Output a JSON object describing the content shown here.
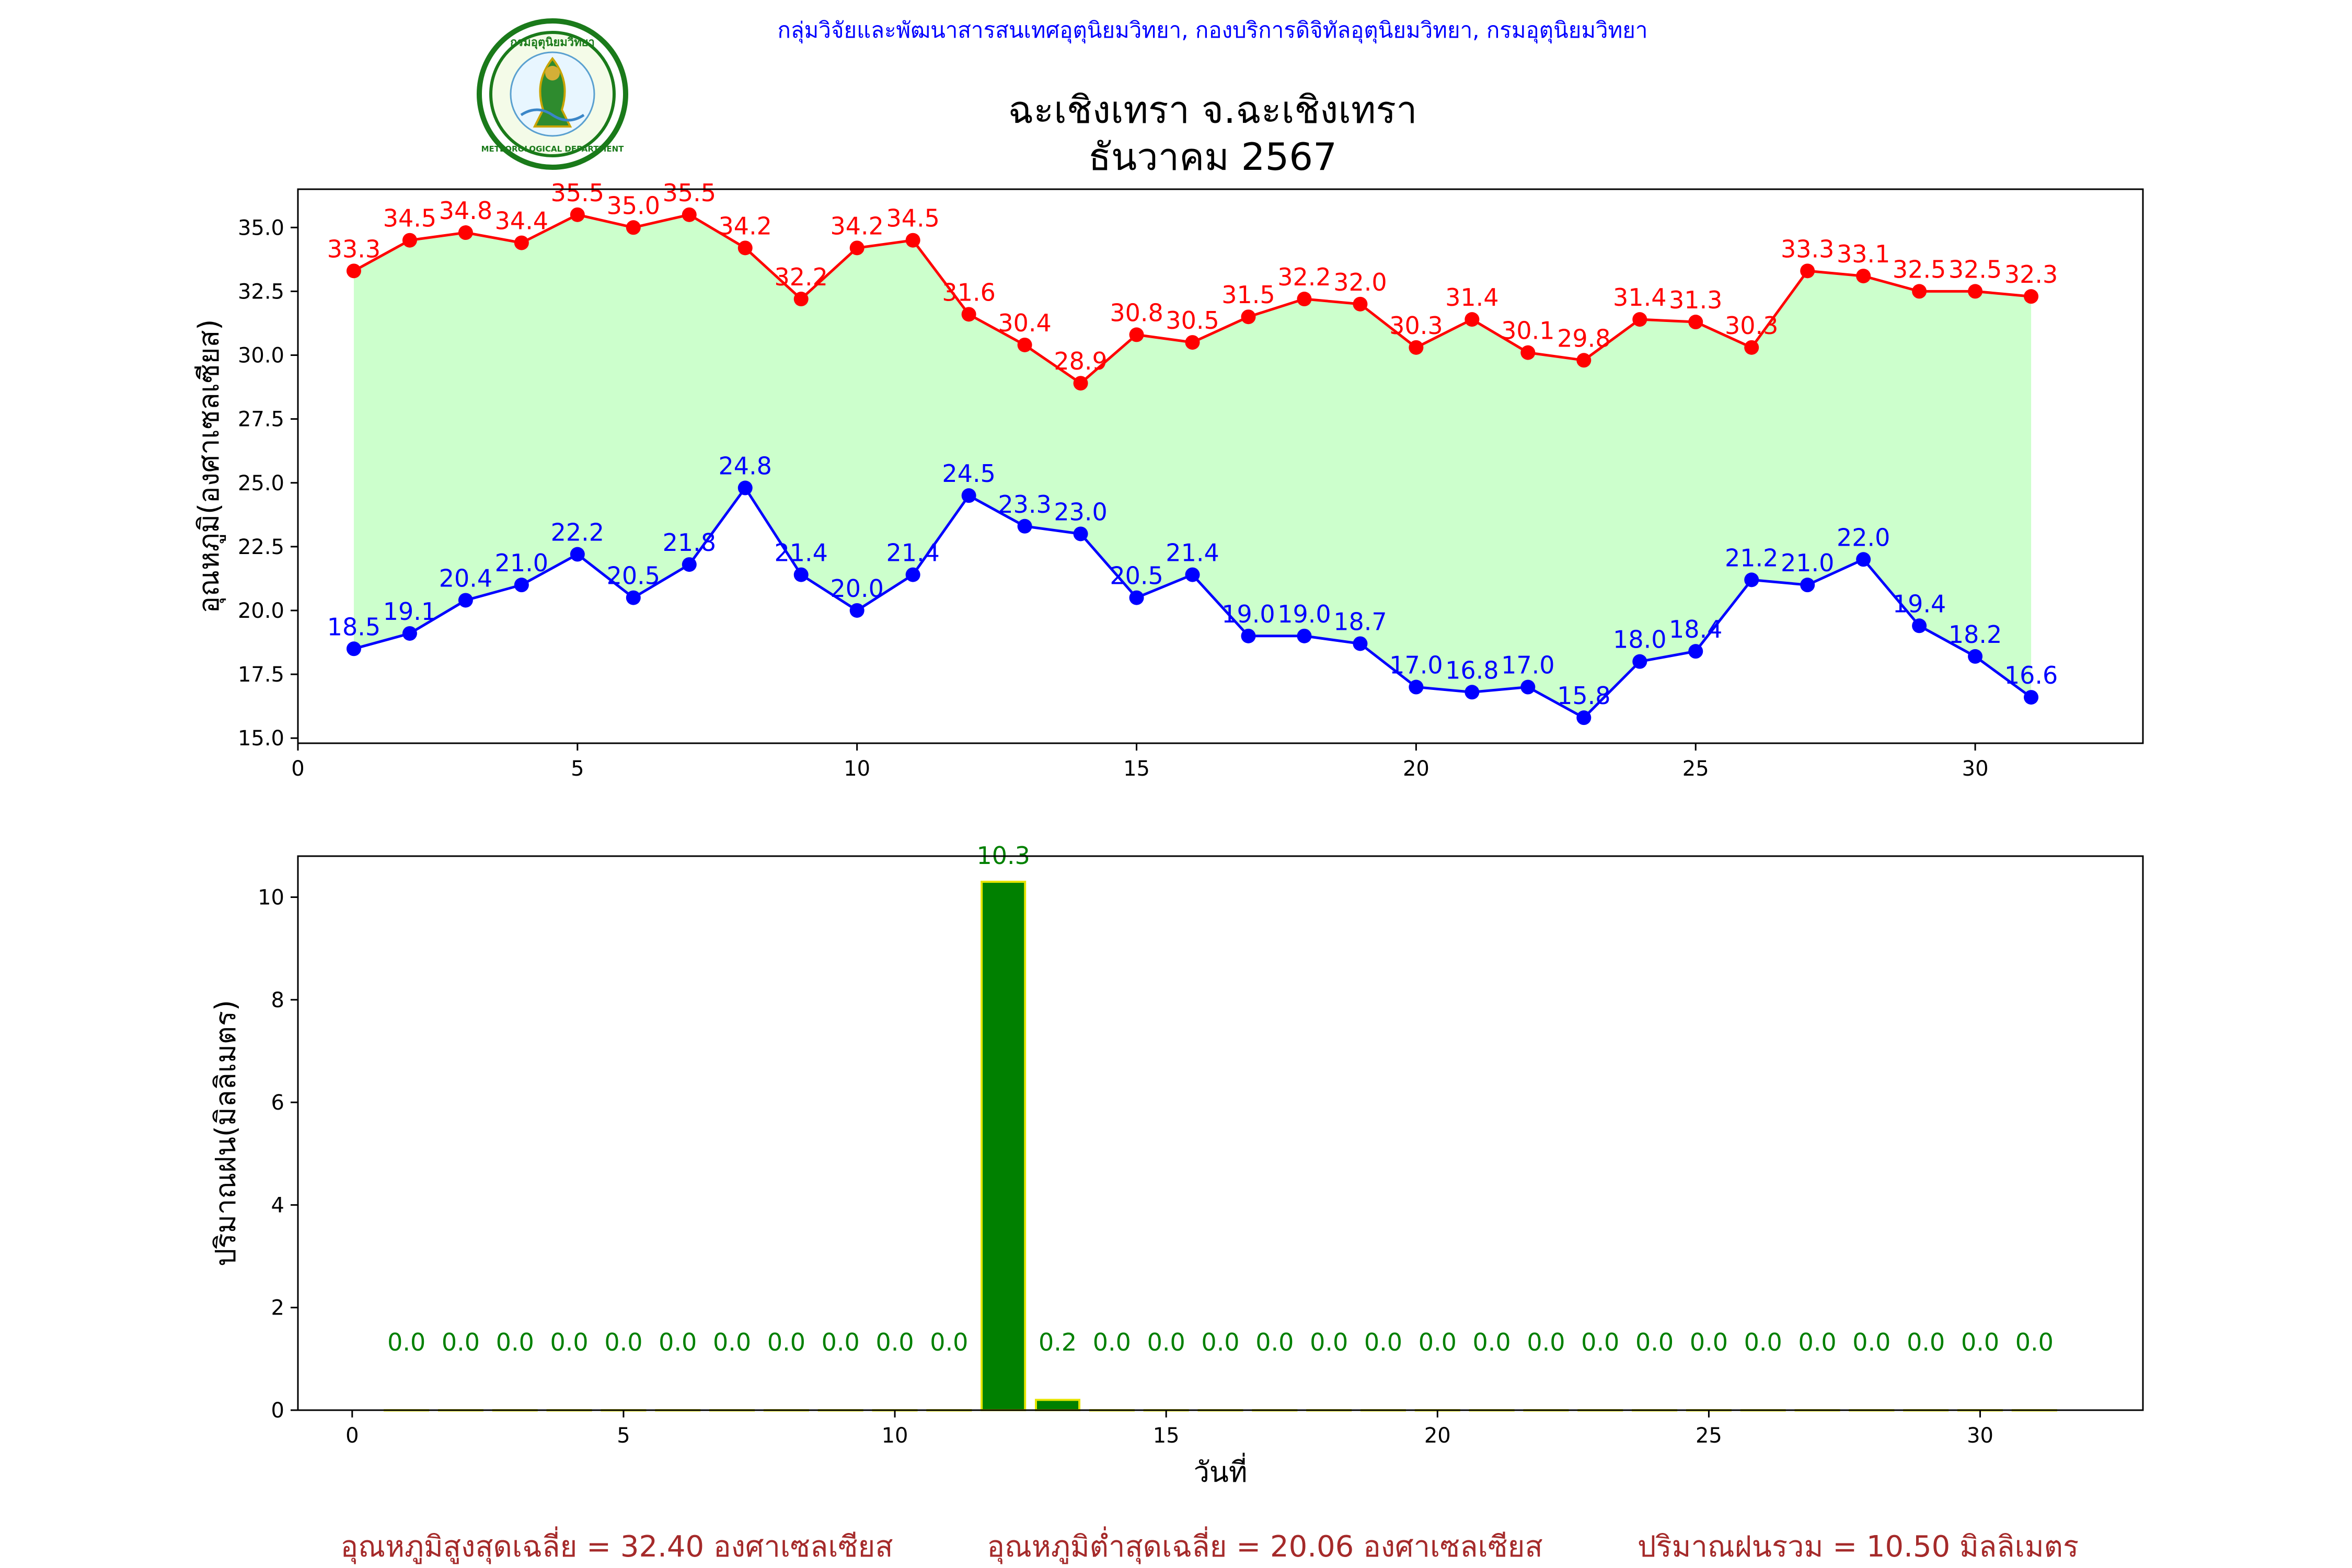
{
  "header": {
    "agency_line": "กลุ่มวิจัยและพัฒนาสารสนเทศอุตุนิยมวิทยา, กองบริการดิจิทัลอุตุนิยมวิทยา, กรมอุตุนิยมวิทยา",
    "title_line1": "ฉะเชิงเทรา จ.ฉะเชิงเทรา",
    "title_line2": "ธันวาคม 2567",
    "logo": {
      "top_text": "กรมอุตุนิยมวิทยา",
      "bottom_text": "METEOROLOGICAL DEPARTMENT"
    }
  },
  "colors": {
    "agency_text": "#0000ff",
    "max_line": "#ff0000",
    "min_line": "#0000ff",
    "fill": "#ccffcc",
    "rain_bar": "#008000",
    "rain_bar_edge": "#e5e500",
    "rain_label": "#008000",
    "summary_text": "#a52a2a"
  },
  "chart_data": [
    {
      "type": "line",
      "title": "",
      "xlabel": "",
      "ylabel": "อุณหภูมิ(องศาเซลเซียส)",
      "x": [
        1,
        2,
        3,
        4,
        5,
        6,
        7,
        8,
        9,
        10,
        11,
        12,
        13,
        14,
        15,
        16,
        17,
        18,
        19,
        20,
        21,
        22,
        23,
        24,
        25,
        26,
        27,
        28,
        29,
        30,
        31
      ],
      "xlim": [
        0,
        33
      ],
      "ylim": [
        14.8,
        36.5
      ],
      "xticks": [
        0,
        5,
        10,
        15,
        20,
        25,
        30
      ],
      "yticks": [
        15.0,
        17.5,
        20.0,
        22.5,
        25.0,
        27.5,
        30.0,
        32.5,
        35.0
      ],
      "grid": false,
      "fill_between_series": true,
      "series": [
        {
          "name": "",
          "color": "#ff0000",
          "values": [
            33.3,
            34.5,
            34.8,
            34.4,
            35.5,
            35.0,
            35.5,
            34.2,
            32.2,
            34.2,
            34.5,
            31.6,
            30.4,
            28.9,
            30.8,
            30.5,
            31.5,
            32.2,
            32.0,
            30.3,
            31.4,
            30.1,
            29.8,
            31.4,
            31.3,
            30.3,
            33.3,
            33.1,
            32.5,
            32.5,
            32.3
          ]
        },
        {
          "name": "",
          "color": "#0000ff",
          "values": [
            18.5,
            19.1,
            20.4,
            21.0,
            22.2,
            20.5,
            21.8,
            24.8,
            21.4,
            20.0,
            21.4,
            24.5,
            23.3,
            23.0,
            20.5,
            21.4,
            19.0,
            19.0,
            18.7,
            17.0,
            16.8,
            17.0,
            15.8,
            18.0,
            18.4,
            21.2,
            21.0,
            22.0,
            19.4,
            18.2,
            16.6
          ]
        }
      ]
    },
    {
      "type": "bar",
      "title": "",
      "xlabel": "วันที่",
      "ylabel": "ปริมาณฝน(มิลลิเมตร)",
      "x": [
        1,
        2,
        3,
        4,
        5,
        6,
        7,
        8,
        9,
        10,
        11,
        12,
        13,
        14,
        15,
        16,
        17,
        18,
        19,
        20,
        21,
        22,
        23,
        24,
        25,
        26,
        27,
        28,
        29,
        30,
        31
      ],
      "xlim": [
        -1,
        33
      ],
      "ylim": [
        0,
        10.8
      ],
      "xticks": [
        0,
        5,
        10,
        15,
        20,
        25,
        30
      ],
      "yticks": [
        0,
        2,
        4,
        6,
        8,
        10
      ],
      "grid": false,
      "series": [
        {
          "name": "",
          "color": "#008000",
          "values": [
            0.0,
            0.0,
            0.0,
            0.0,
            0.0,
            0.0,
            0.0,
            0.0,
            0.0,
            0.0,
            0.0,
            10.3,
            0.2,
            0.0,
            0.0,
            0.0,
            0.0,
            0.0,
            0.0,
            0.0,
            0.0,
            0.0,
            0.0,
            0.0,
            0.0,
            0.0,
            0.0,
            0.0,
            0.0,
            0.0,
            0.0
          ]
        }
      ]
    }
  ],
  "summary": {
    "avg_max": "อุณหภูมิสูงสุดเฉลี่ย = 32.40 องศาเซลเซียส",
    "avg_min": "อุณหภูมิต่ำสุดเฉลี่ย = 20.06 องศาเซลเซียส",
    "total_rain": "ปริมาณฝนรวม = 10.50 มิลลิเมตร"
  }
}
